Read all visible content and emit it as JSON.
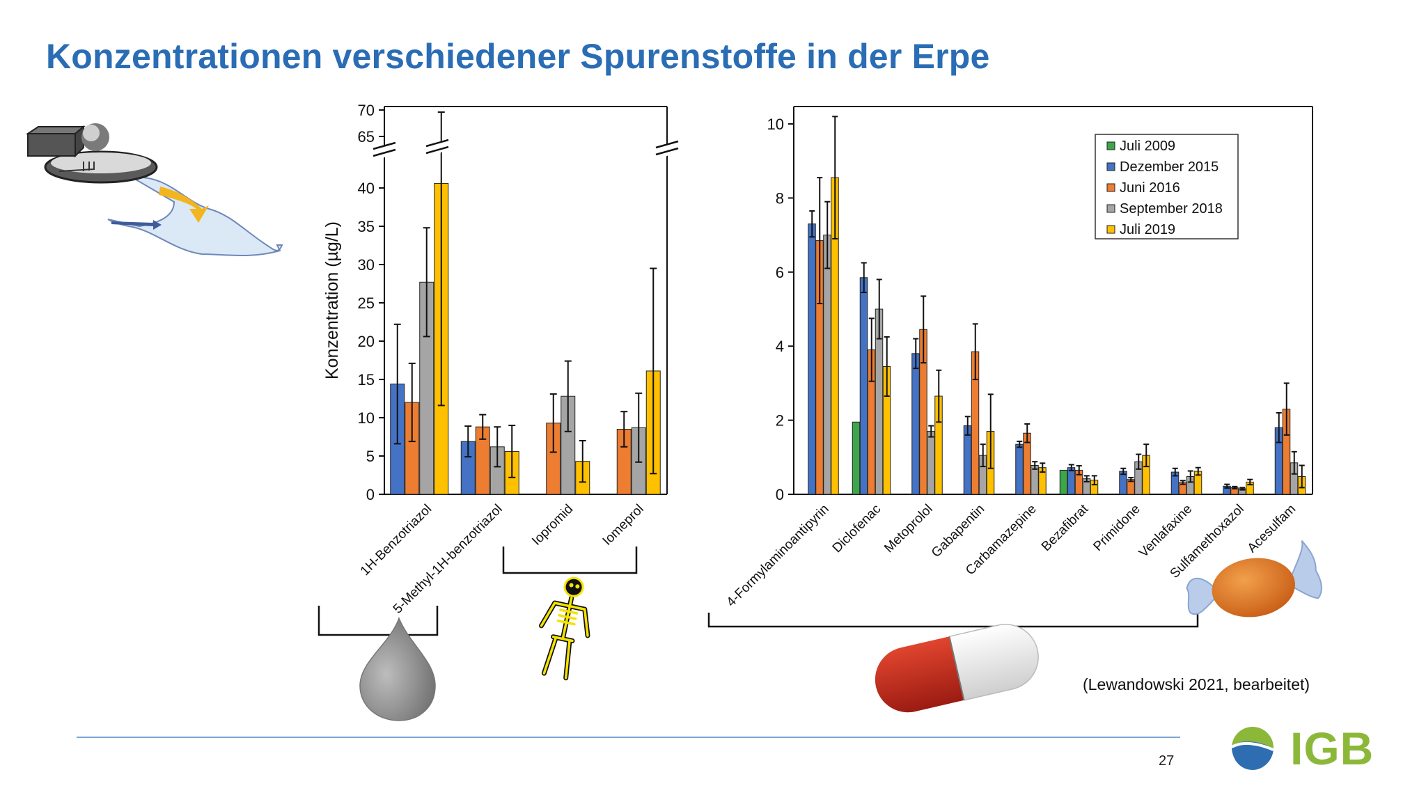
{
  "slide": {
    "title": "Konzentrationen verschiedener Spurenstoffe in der Erpe",
    "citation": "(Lewandowski 2021, bearbeitet)",
    "page_number": "27",
    "logo_text": "IGB"
  },
  "colors": {
    "title": "#2a6db5",
    "Juli 2009": "#3ea64a",
    "Dezember 2015": "#4472c4",
    "Juni 2016": "#ed7d31",
    "September 2018": "#a5a5a5",
    "Juli 2019": "#ffc000"
  },
  "icons": [
    "wastewater-plant-icon",
    "water-drop-icon",
    "skeleton-xray-icon",
    "pill-capsule-icon",
    "candy-icon",
    "igb-logo-icon"
  ],
  "chart_data": [
    {
      "type": "bar",
      "ylabel": "Konzentration (µg/L)",
      "xlabel": "",
      "ylim": [
        0,
        70
      ],
      "axis_break": [
        42,
        63
      ],
      "yticks": [
        0,
        5,
        10,
        15,
        20,
        25,
        30,
        35,
        40,
        65,
        70
      ],
      "grid": false,
      "categories": [
        "1H-Benzotriazol",
        "5-Methyl-1H-benzotriazol",
        "Iopromid",
        "Iomeprol"
      ],
      "series": [
        {
          "name": "Dezember 2015",
          "values": [
            14.4,
            6.9,
            null,
            null
          ],
          "errors": [
            7.8,
            2.0,
            null,
            null
          ]
        },
        {
          "name": "Juni 2016",
          "values": [
            12.0,
            8.8,
            9.3,
            8.5
          ],
          "errors": [
            5.1,
            1.6,
            3.8,
            2.3
          ]
        },
        {
          "name": "September 2018",
          "values": [
            27.7,
            6.2,
            12.8,
            8.7
          ],
          "errors": [
            7.1,
            2.6,
            4.6,
            4.5
          ]
        },
        {
          "name": "Juli 2019",
          "values": [
            40.6,
            5.6,
            4.3,
            16.1
          ],
          "errors": [
            29.0,
            3.4,
            2.7,
            13.4
          ]
        }
      ],
      "annotations": [
        "axis break marks at 40-65"
      ]
    },
    {
      "type": "bar",
      "ylabel": "",
      "xlabel": "",
      "ylim": [
        0,
        10
      ],
      "yticks": [
        0,
        2,
        4,
        6,
        8,
        10
      ],
      "grid": false,
      "legend_position": "top-right",
      "categories": [
        "4-Formylaminoantipyrin",
        "Diclofenac",
        "Metoprolol",
        "Gabapentin",
        "Carbamazepine",
        "Bezafibrat",
        "Primidone",
        "Venlafaxine",
        "Sulfamethoxazol",
        "Acesulfam"
      ],
      "series": [
        {
          "name": "Juli 2009",
          "values": [
            null,
            1.95,
            null,
            null,
            null,
            0.65,
            null,
            null,
            null,
            null
          ],
          "errors": [
            null,
            0,
            null,
            null,
            null,
            0,
            null,
            null,
            null,
            null
          ]
        },
        {
          "name": "Dezember 2015",
          "values": [
            7.3,
            5.85,
            3.8,
            1.85,
            1.35,
            0.72,
            0.62,
            0.6,
            0.22,
            1.8
          ]
        },
        {
          "name": "Juni 2016",
          "values": [
            6.85,
            3.9,
            4.45,
            3.85,
            1.65,
            0.65,
            0.4,
            0.32,
            0.18,
            2.3
          ]
        },
        {
          "name": "September 2018",
          "values": [
            7.0,
            5.0,
            1.7,
            1.05,
            0.78,
            0.42,
            0.88,
            0.48,
            0.15,
            0.85
          ]
        },
        {
          "name": "Juli 2019",
          "values": [
            8.55,
            3.45,
            2.65,
            1.7,
            0.72,
            0.38,
            1.05,
            0.62,
            0.33,
            0.48
          ]
        }
      ],
      "error_bars": {
        "Dezember 2015": [
          0.35,
          0.4,
          0.4,
          0.25,
          0.08,
          0.08,
          0.08,
          0.1,
          0.05,
          0.4
        ],
        "Juni 2016": [
          1.7,
          0.85,
          0.9,
          0.75,
          0.25,
          0.12,
          0.05,
          0.05,
          0.03,
          0.7
        ],
        "September 2018": [
          0.9,
          0.8,
          0.15,
          0.3,
          0.1,
          0.08,
          0.2,
          0.15,
          0.03,
          0.3
        ],
        "Juli 2019": [
          1.65,
          0.8,
          0.7,
          1.0,
          0.12,
          0.12,
          0.3,
          0.1,
          0.07,
          0.3
        ]
      }
    }
  ]
}
